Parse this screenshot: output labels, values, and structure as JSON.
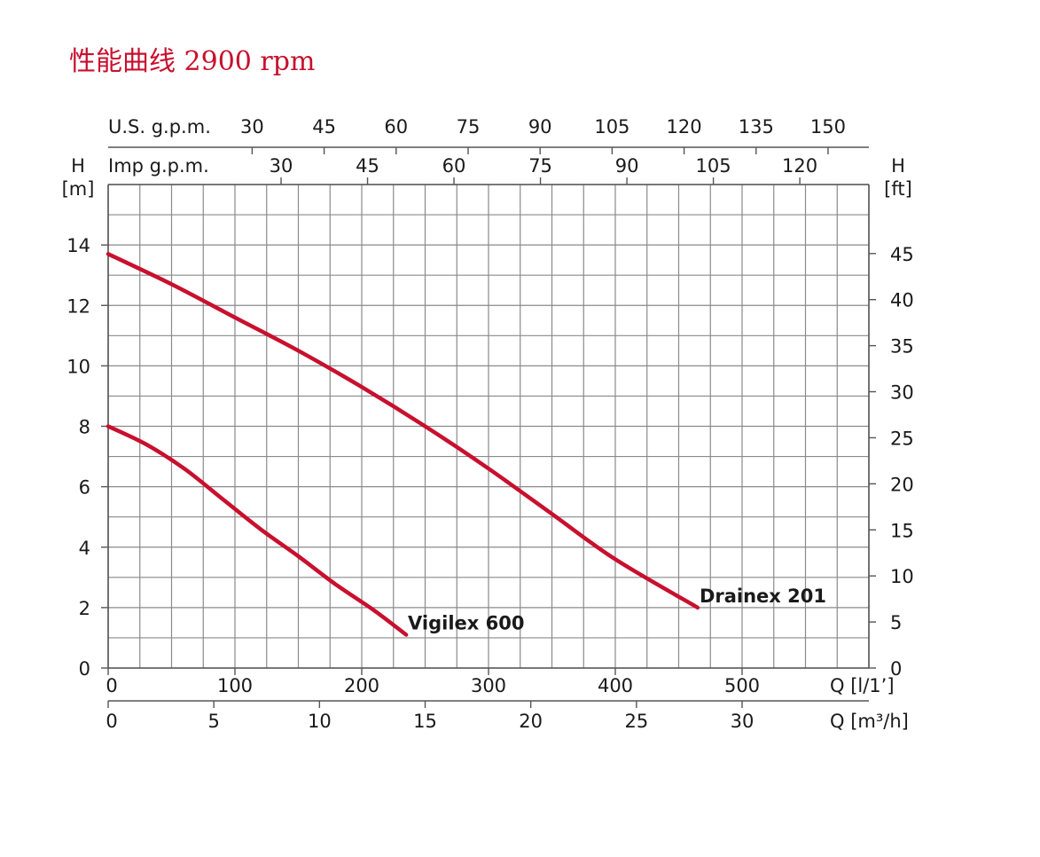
{
  "chart_data": {
    "type": "line",
    "title": "性能曲线 2900 rpm",
    "x_primary": {
      "label": "Q [l/1’]",
      "ticks": [
        0,
        100,
        200,
        300,
        400,
        500
      ],
      "range": [
        0,
        600
      ]
    },
    "x_secondary": {
      "label": "Q [m³/h]",
      "ticks": [
        0,
        5,
        10,
        15,
        20,
        25,
        30
      ]
    },
    "x_top_us": {
      "label": "U.S. g.p.m.",
      "ticks": [
        30,
        45,
        60,
        75,
        90,
        105,
        120,
        135,
        150
      ]
    },
    "x_top_imp": {
      "label": "Imp g.p.m.",
      "ticks": [
        30,
        45,
        60,
        75,
        90,
        105,
        120
      ]
    },
    "y_left": {
      "label_top": "H",
      "label_unit": "[m]",
      "ticks": [
        0,
        2,
        4,
        6,
        8,
        10,
        12,
        14
      ],
      "range": [
        0,
        16
      ]
    },
    "y_right": {
      "label_top": "H",
      "label_unit": "[ft]",
      "ticks": [
        0,
        5,
        10,
        15,
        20,
        25,
        30,
        35,
        40,
        45
      ]
    },
    "grid": true,
    "series": [
      {
        "name": "Drainex 201",
        "color": "#c8102e",
        "points": [
          [
            0,
            13.7
          ],
          [
            50,
            12.7
          ],
          [
            100,
            11.6
          ],
          [
            150,
            10.5
          ],
          [
            200,
            9.3
          ],
          [
            250,
            8.0
          ],
          [
            300,
            6.6
          ],
          [
            350,
            5.1
          ],
          [
            400,
            3.6
          ],
          [
            465,
            2.0
          ]
        ]
      },
      {
        "name": "Vigilex 600",
        "color": "#c8102e",
        "points": [
          [
            0,
            8.0
          ],
          [
            30,
            7.4
          ],
          [
            60,
            6.6
          ],
          [
            90,
            5.6
          ],
          [
            120,
            4.6
          ],
          [
            150,
            3.7
          ],
          [
            180,
            2.75
          ],
          [
            210,
            1.9
          ],
          [
            235,
            1.1
          ]
        ]
      }
    ]
  }
}
